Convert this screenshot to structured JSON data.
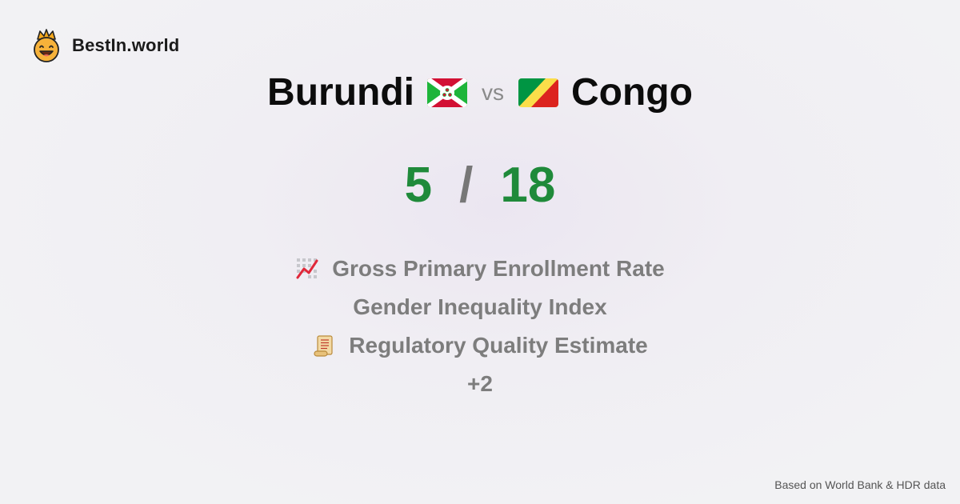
{
  "brand": {
    "name": "BestIn.world",
    "logo_icon": "crown-smiley-icon"
  },
  "comparison": {
    "left": {
      "name": "Burundi",
      "flag_icon": "burundi-flag-icon"
    },
    "vs_label": "vs",
    "right": {
      "name": "Congo",
      "flag_icon": "congo-flag-icon"
    }
  },
  "scores": {
    "left": "5",
    "separator": "/",
    "right": "18"
  },
  "metrics": [
    {
      "label": "Gross Primary Enrollment Rate",
      "icon": "chart-increasing-icon"
    },
    {
      "label": "Gender Inequality Index",
      "icon": ""
    },
    {
      "label": "Regulatory Quality Estimate",
      "icon": "scroll-icon"
    },
    {
      "label": "+2",
      "icon": ""
    }
  ],
  "footer": {
    "source": "Based on World Bank & HDR data"
  },
  "colors": {
    "score": "#1f8a3a",
    "muted": "#7d7d7d",
    "title": "#0c0c0c"
  }
}
